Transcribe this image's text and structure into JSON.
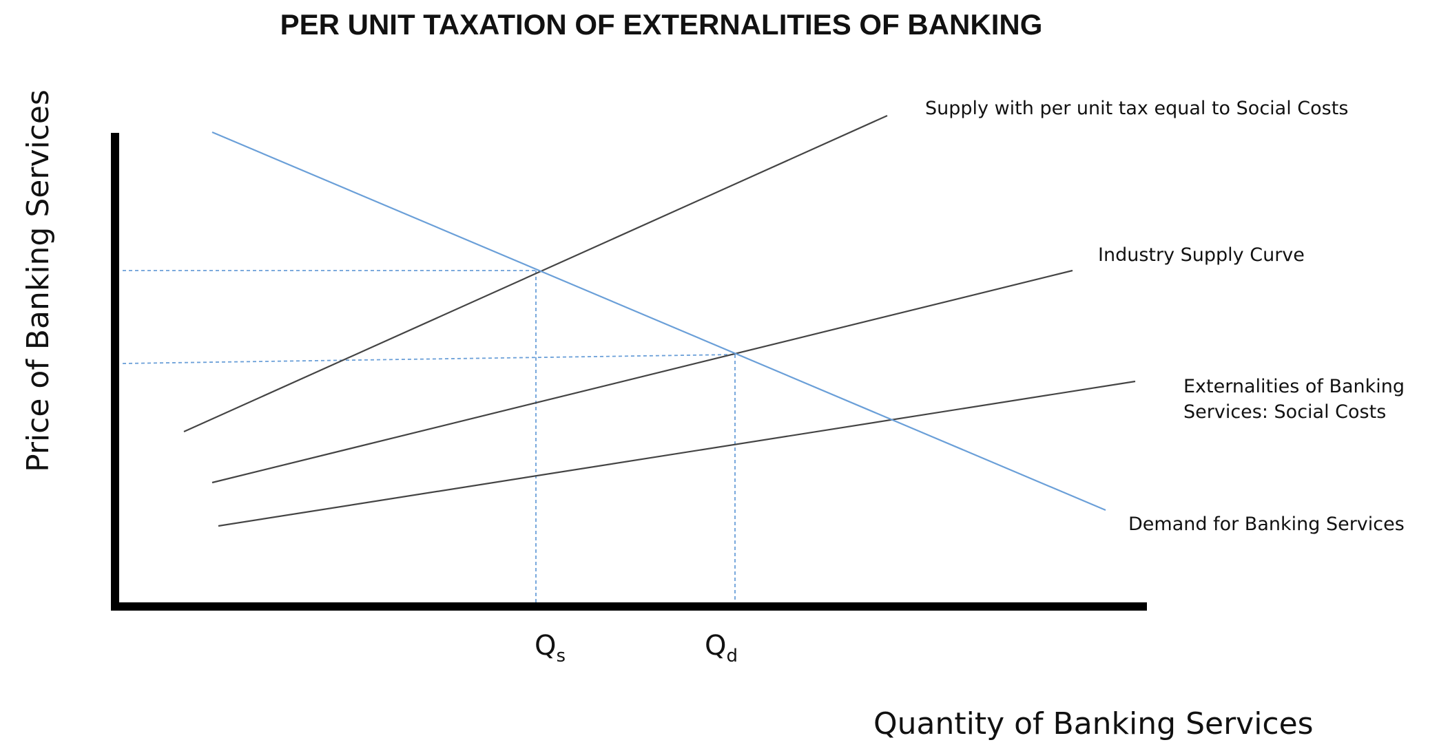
{
  "diagram": {
    "title": "PER UNIT TAXATION OF EXTERNALITIES OF BANKING",
    "y_axis_label": "Price of Banking Services",
    "x_axis_label": "Quantity of Banking Services",
    "quantity_marks": [
      {
        "base": "Q",
        "sub": "s"
      },
      {
        "base": "Q",
        "sub": "d"
      }
    ],
    "curves": {
      "taxed_supply": {
        "label": "Supply with per unit tax equal to Social Costs"
      },
      "industry_supply": {
        "label": "Industry Supply Curve"
      },
      "social_costs": {
        "label_line1": "Externalities of Banking",
        "label_line2": "Services: Social Costs"
      },
      "demand": {
        "label": "Demand for Banking Services"
      }
    },
    "colors": {
      "axis": "#000000",
      "supply_lines": "#444444",
      "demand_line": "#6a9fd8",
      "guide_lines": "#6a9fd8"
    }
  }
}
